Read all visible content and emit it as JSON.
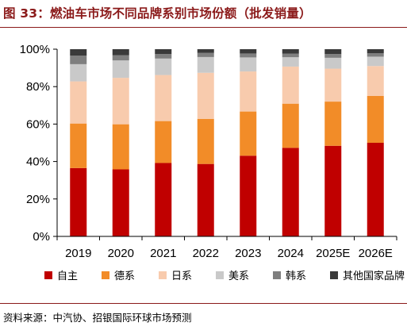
{
  "header": {
    "title": "图 33：燃油车市场不同品牌系别市场份额（批发销量）"
  },
  "footer": {
    "source": "资料来源：中汽协、招银国际环球市场预测"
  },
  "chart_data": {
    "type": "bar",
    "stacked": true,
    "title": "",
    "xlabel": "",
    "ylabel": "",
    "categories": [
      "2019",
      "2020",
      "2021",
      "2022",
      "2023",
      "2024",
      "2025E",
      "2026E"
    ],
    "ylim": [
      0,
      100
    ],
    "yticks": [
      0,
      20,
      40,
      60,
      80,
      100
    ],
    "ytick_labels": [
      "0%",
      "20%",
      "40%",
      "60%",
      "80%",
      "100%"
    ],
    "grid": false,
    "legend_position": "bottom",
    "series": [
      {
        "name": "自主",
        "color": "#c00000",
        "values": [
          36.5,
          35.8,
          39.2,
          38.7,
          43.1,
          47.3,
          48.4,
          50.0
        ]
      },
      {
        "name": "德系",
        "color": "#f28c28",
        "values": [
          23.8,
          24.1,
          22.4,
          24.1,
          23.6,
          23.6,
          23.6,
          25.0
        ]
      },
      {
        "name": "日系",
        "color": "#f8cbad",
        "values": [
          22.5,
          24.8,
          24.6,
          24.6,
          21.4,
          19.8,
          17.6,
          16.0
        ]
      },
      {
        "name": "美系",
        "color": "#c9c9c9",
        "values": [
          9.2,
          9.3,
          8.8,
          8.4,
          7.5,
          5.0,
          5.8,
          5.0
        ]
      },
      {
        "name": "韩系",
        "color": "#7f7f7f",
        "values": [
          4.6,
          2.8,
          2.4,
          2.2,
          2.1,
          1.9,
          2.0,
          1.8
        ]
      },
      {
        "name": "其他国家品牌",
        "color": "#3a3a3a",
        "values": [
          3.4,
          3.2,
          2.6,
          2.0,
          2.3,
          2.4,
          2.6,
          2.2
        ]
      }
    ]
  }
}
